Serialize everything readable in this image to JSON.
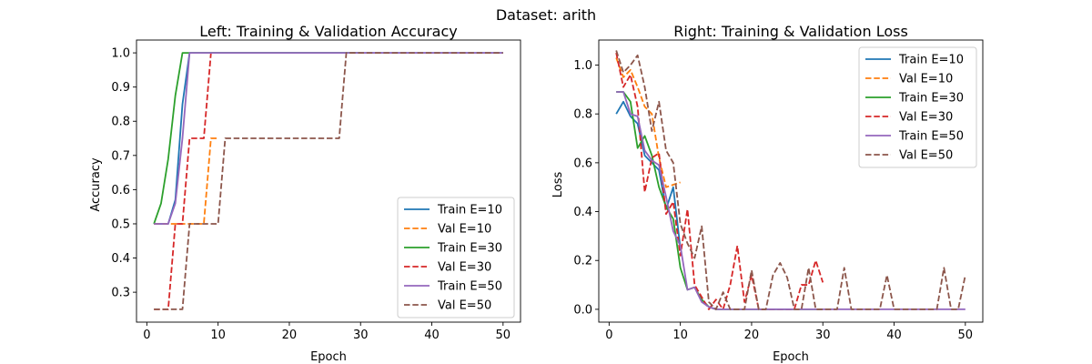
{
  "figure": {
    "suptitle": "Dataset: arith"
  },
  "colors": {
    "c10": "#1f77b4",
    "c10val": "#ff7f0e",
    "c30": "#2ca02c",
    "c30val": "#d62728",
    "c50": "#9467bd",
    "c50val": "#8c564b"
  },
  "chart_data": [
    {
      "type": "line",
      "title": "Left: Training & Validation Accuracy",
      "xlabel": "Epoch",
      "ylabel": "Accuracy",
      "xlim": [
        -1.45,
        52.45
      ],
      "ylim": [
        0.2125,
        1.0375
      ],
      "xticks": [
        0,
        10,
        20,
        30,
        40,
        50
      ],
      "yticks": [
        0.3,
        0.4,
        0.5,
        0.6,
        0.7,
        0.8,
        0.9,
        1.0
      ],
      "ytick_labels": [
        "0.3",
        "0.4",
        "0.5",
        "0.6",
        "0.7",
        "0.8",
        "0.9",
        "1.0"
      ],
      "legend": "lower-right",
      "series": [
        {
          "name": "Train E=10",
          "style": "solid",
          "color_key": "c10",
          "x": [
            1,
            2,
            3,
            4,
            5,
            6,
            7,
            8,
            9,
            10,
            11,
            12,
            13,
            14,
            15,
            16,
            17,
            18,
            19,
            20,
            21,
            22,
            23,
            24,
            25,
            26,
            27,
            28,
            29,
            30,
            31,
            32,
            33,
            34,
            35,
            36,
            37,
            38,
            39,
            40,
            41,
            42,
            43,
            44,
            45,
            46,
            47,
            48,
            49,
            50
          ],
          "y": [
            0.5,
            0.5,
            0.5,
            0.57,
            0.85,
            1.0,
            1.0,
            1.0,
            1.0,
            1.0,
            1.0,
            1.0,
            1.0,
            1.0,
            1.0,
            1.0,
            1.0,
            1.0,
            1.0,
            1.0,
            1.0,
            1.0,
            1.0,
            1.0,
            1.0,
            1.0,
            1.0,
            1.0,
            1.0,
            1.0,
            1.0,
            1.0,
            1.0,
            1.0,
            1.0,
            1.0,
            1.0,
            1.0,
            1.0,
            1.0,
            1.0,
            1.0,
            1.0,
            1.0,
            1.0,
            1.0,
            1.0,
            1.0,
            1.0,
            1.0
          ]
        },
        {
          "name": "Val E=10",
          "style": "dashed",
          "color_key": "c10val",
          "x": [
            1,
            2,
            3,
            4,
            5,
            6,
            7,
            8,
            9,
            10
          ],
          "y": [
            0.5,
            0.5,
            0.5,
            0.5,
            0.5,
            0.5,
            0.5,
            0.5,
            0.75,
            0.75
          ]
        },
        {
          "name": "Train E=30",
          "style": "solid",
          "color_key": "c30",
          "x": [
            1,
            2,
            3,
            4,
            5,
            6,
            7,
            8,
            9,
            10,
            11,
            12,
            13,
            14,
            15,
            16,
            17,
            18,
            19,
            20,
            21,
            22,
            23,
            24,
            25,
            26,
            27,
            28,
            29,
            30
          ],
          "y": [
            0.5,
            0.56,
            0.69,
            0.875,
            1.0,
            1.0,
            1.0,
            1.0,
            1.0,
            1.0,
            1.0,
            1.0,
            1.0,
            1.0,
            1.0,
            1.0,
            1.0,
            1.0,
            1.0,
            1.0,
            1.0,
            1.0,
            1.0,
            1.0,
            1.0,
            1.0,
            1.0,
            1.0,
            1.0,
            1.0
          ]
        },
        {
          "name": "Val E=30",
          "style": "dashed",
          "color_key": "c30val",
          "x": [
            1,
            2,
            3,
            4,
            5,
            6,
            7,
            8,
            9
          ],
          "y": [
            0.25,
            0.25,
            0.25,
            0.5,
            0.5,
            0.75,
            0.75,
            0.75,
            1.0
          ]
        },
        {
          "name": "Train E=50",
          "style": "solid",
          "color_key": "c50",
          "x": [
            1,
            2,
            3,
            4,
            5,
            6,
            7,
            8,
            9,
            10,
            11,
            12,
            13,
            14,
            15,
            16,
            17,
            18,
            19,
            20,
            21,
            22,
            23,
            24,
            25,
            26,
            27,
            28,
            29,
            30,
            31,
            32,
            33,
            34,
            35,
            36,
            37,
            38,
            39,
            40,
            41,
            42,
            43,
            44,
            45,
            46,
            47,
            48,
            49,
            50
          ],
          "y": [
            0.5,
            0.5,
            0.5,
            0.56,
            0.75,
            1.0,
            1.0,
            1.0,
            1.0,
            1.0,
            1.0,
            1.0,
            1.0,
            1.0,
            1.0,
            1.0,
            1.0,
            1.0,
            1.0,
            1.0,
            1.0,
            1.0,
            1.0,
            1.0,
            1.0,
            1.0,
            1.0,
            1.0,
            1.0,
            1.0,
            1.0,
            1.0,
            1.0,
            1.0,
            1.0,
            1.0,
            1.0,
            1.0,
            1.0,
            1.0,
            1.0,
            1.0,
            1.0,
            1.0,
            1.0,
            1.0,
            1.0,
            1.0,
            1.0,
            1.0
          ]
        },
        {
          "name": "Val E=50",
          "style": "dashed",
          "color_key": "c50val",
          "x": [
            1,
            2,
            3,
            4,
            5,
            6,
            7,
            8,
            9,
            10,
            11,
            12,
            13,
            14,
            15,
            16,
            17,
            18,
            19,
            20,
            21,
            22,
            23,
            24,
            25,
            26,
            27,
            28,
            29,
            30,
            31,
            32,
            33,
            34,
            35,
            36,
            37,
            38,
            39,
            40,
            41,
            42,
            43,
            44,
            45,
            46,
            47,
            48,
            49,
            50
          ],
          "y": [
            0.25,
            0.25,
            0.25,
            0.25,
            0.25,
            0.5,
            0.5,
            0.5,
            0.5,
            0.5,
            0.75,
            0.75,
            0.75,
            0.75,
            0.75,
            0.75,
            0.75,
            0.75,
            0.75,
            0.75,
            0.75,
            0.75,
            0.75,
            0.75,
            0.75,
            0.75,
            0.75,
            1.0,
            1.0,
            1.0,
            1.0,
            1.0,
            1.0,
            1.0,
            1.0,
            1.0,
            1.0,
            1.0,
            1.0,
            1.0,
            1.0,
            1.0,
            1.0,
            1.0,
            1.0,
            1.0,
            1.0,
            1.0,
            1.0,
            1.0
          ]
        }
      ]
    },
    {
      "type": "line",
      "title": "Right: Training & Validation Loss",
      "xlabel": "Epoch",
      "ylabel": "Loss",
      "xlim": [
        -1.45,
        52.45
      ],
      "ylim": [
        -0.0525,
        1.1025
      ],
      "xticks": [
        0,
        10,
        20,
        30,
        40,
        50
      ],
      "yticks": [
        0.0,
        0.2,
        0.4,
        0.6,
        0.8,
        1.0
      ],
      "ytick_labels": [
        "0.0",
        "0.2",
        "0.4",
        "0.6",
        "0.8",
        "1.0"
      ],
      "legend": "upper-right",
      "series": [
        {
          "name": "Train E=10",
          "style": "solid",
          "color_key": "c10",
          "x": [
            1,
            2,
            3,
            4,
            5,
            6,
            7,
            8,
            9,
            10
          ],
          "y": [
            0.8,
            0.85,
            0.79,
            0.76,
            0.63,
            0.6,
            0.57,
            0.41,
            0.5,
            0.25
          ]
        },
        {
          "name": "Val E=10",
          "style": "dashed",
          "color_key": "c10val",
          "x": [
            1,
            2,
            3,
            4,
            5,
            6,
            7,
            8,
            9,
            10
          ],
          "y": [
            1.03,
            0.95,
            0.98,
            0.91,
            0.83,
            0.8,
            0.62,
            0.5,
            0.51,
            0.52
          ]
        },
        {
          "name": "Train E=30",
          "style": "solid",
          "color_key": "c30",
          "x": [
            1,
            2,
            3,
            4,
            5,
            6,
            7,
            8,
            9,
            10,
            11,
            12,
            13,
            14,
            15,
            16,
            17,
            18,
            19,
            20,
            21,
            22,
            23,
            24,
            25,
            26,
            27,
            28,
            29,
            30
          ],
          "y": [
            0.89,
            0.89,
            0.85,
            0.66,
            0.71,
            0.63,
            0.5,
            0.42,
            0.37,
            0.17,
            0.08,
            0.09,
            0.04,
            0.01,
            0.0,
            0.0,
            0.0,
            0.0,
            0.0,
            0.0,
            0.0,
            0.0,
            0.0,
            0.0,
            0.0,
            0.0,
            0.0,
            0.0,
            0.0,
            0.0
          ]
        },
        {
          "name": "Val E=30",
          "style": "dashed",
          "color_key": "c30val",
          "x": [
            1,
            2,
            3,
            4,
            5,
            6,
            7,
            8,
            9,
            10,
            11,
            12,
            13,
            14,
            15,
            16,
            17,
            18,
            19,
            20,
            21,
            22,
            23,
            24,
            25,
            26,
            27,
            28,
            29,
            30
          ],
          "y": [
            1.05,
            0.91,
            0.96,
            0.83,
            0.48,
            0.62,
            0.64,
            0.39,
            0.44,
            0.22,
            0.41,
            0.1,
            0.05,
            0.0,
            0.04,
            0.0,
            0.1,
            0.26,
            0.03,
            0.14,
            0.0,
            0.0,
            0.0,
            0.0,
            0.0,
            0.0,
            0.1,
            0.1,
            0.2,
            0.11
          ]
        },
        {
          "name": "Train E=50",
          "style": "solid",
          "color_key": "c50",
          "x": [
            1,
            2,
            3,
            4,
            5,
            6,
            7,
            8,
            9,
            10,
            11,
            12,
            13,
            14,
            15,
            16,
            17,
            18,
            19,
            20,
            21,
            22,
            23,
            24,
            25,
            26,
            27,
            28,
            29,
            30,
            31,
            32,
            33,
            34,
            35,
            36,
            37,
            38,
            39,
            40,
            41,
            42,
            43,
            44,
            45,
            46,
            47,
            48,
            49,
            50
          ],
          "y": [
            0.89,
            0.89,
            0.8,
            0.79,
            0.65,
            0.61,
            0.59,
            0.46,
            0.32,
            0.26,
            0.08,
            0.09,
            0.03,
            0.01,
            0.0,
            0.0,
            0.0,
            0.0,
            0.0,
            0.0,
            0.0,
            0.0,
            0.0,
            0.0,
            0.0,
            0.0,
            0.0,
            0.0,
            0.0,
            0.0,
            0.0,
            0.0,
            0.0,
            0.0,
            0.0,
            0.0,
            0.0,
            0.0,
            0.0,
            0.0,
            0.0,
            0.0,
            0.0,
            0.0,
            0.0,
            0.0,
            0.0,
            0.0,
            0.0,
            0.0
          ]
        },
        {
          "name": "Val E=50",
          "style": "dashed",
          "color_key": "c50val",
          "x": [
            1,
            2,
            3,
            4,
            5,
            6,
            7,
            8,
            9,
            10,
            11,
            12,
            13,
            14,
            15,
            16,
            17,
            18,
            19,
            20,
            21,
            22,
            23,
            24,
            25,
            26,
            27,
            28,
            29,
            30,
            31,
            32,
            33,
            34,
            35,
            36,
            37,
            38,
            39,
            40,
            41,
            42,
            43,
            44,
            45,
            46,
            47,
            48,
            49,
            50
          ],
          "y": [
            1.06,
            0.97,
            1.0,
            1.04,
            0.91,
            0.73,
            0.85,
            0.65,
            0.6,
            0.35,
            0.27,
            0.21,
            0.34,
            0.03,
            0.0,
            0.07,
            0.0,
            0.0,
            0.0,
            0.16,
            0.0,
            0.0,
            0.14,
            0.19,
            0.13,
            0.0,
            0.0,
            0.17,
            0.0,
            0.0,
            0.0,
            0.0,
            0.17,
            0.0,
            0.0,
            0.0,
            0.0,
            0.0,
            0.14,
            0.0,
            0.0,
            0.0,
            0.0,
            0.0,
            0.0,
            0.0,
            0.17,
            0.0,
            0.0,
            0.14
          ]
        }
      ]
    }
  ]
}
